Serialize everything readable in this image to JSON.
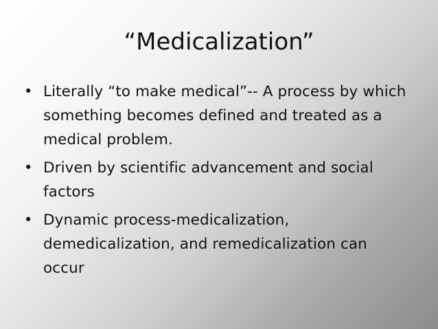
{
  "slide": {
    "title": "“Medicalization”",
    "bullet_glyph": "•",
    "bullets": [
      {
        "text": "Literally “to make medical”-- A process by which something becomes defined and treated as a medical problem."
      },
      {
        "text": "Driven by scientific advancement and social factors"
      },
      {
        "text": "Dynamic process-medicalization, demedicalization, and remedicalization can occur"
      }
    ]
  },
  "colors": {
    "text": "#111111",
    "background_light": "#ffffff",
    "background_dark": "#8c8c8c"
  }
}
